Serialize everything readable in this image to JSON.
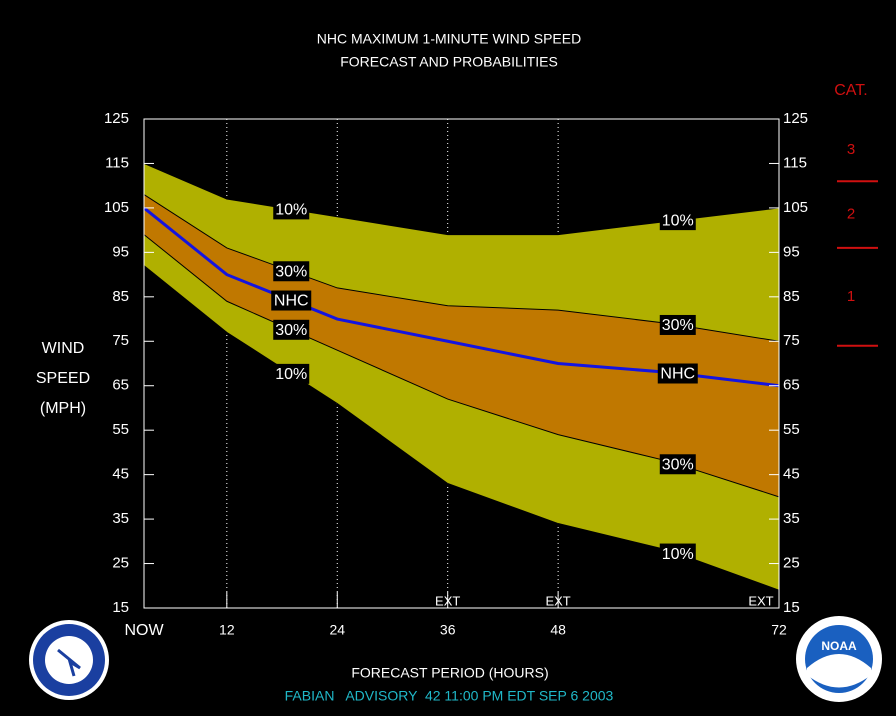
{
  "chart_data": {
    "type": "probability-bands",
    "title": "NHC MAXIMUM 1-MINUTE WIND SPEED",
    "subtitle": "FORECAST AND PROBABILITIES",
    "y_label": [
      "WIND",
      "SPEED",
      "(MPH)"
    ],
    "x_label": "FORECAST PERIOD (HOURS)",
    "footer": "FABIAN   ADVISORY  42 11:00 PM EDT SEP 6 2003",
    "x": [
      3,
      12,
      24,
      36,
      48,
      60,
      72
    ],
    "series": [
      {
        "name": "10%",
        "color": "#b0b000",
        "values": [
          115,
          107,
          103,
          99,
          99,
          102,
          105
        ]
      },
      {
        "name": "30%",
        "color": "#c07800",
        "values": [
          108,
          96,
          87,
          83,
          82,
          79,
          75
        ]
      },
      {
        "name": "NHC",
        "color": "#1414e0",
        "values": [
          105,
          90,
          80,
          75,
          70,
          68,
          65
        ]
      },
      {
        "name": "30%",
        "color": "#c07800",
        "values": [
          99,
          84,
          73,
          62,
          54,
          48,
          40
        ]
      },
      {
        "name": "10%",
        "color": "#b0b000",
        "values": [
          92,
          77,
          61,
          43,
          34,
          28,
          19
        ]
      }
    ],
    "xlim": [
      3,
      72
    ],
    "xticks": [
      {
        "value": 3,
        "label": "NOW"
      },
      12,
      24,
      36,
      48,
      72
    ],
    "ylim": [
      15,
      125
    ],
    "yticks": [
      15,
      25,
      35,
      45,
      55,
      65,
      75,
      85,
      95,
      105,
      115,
      125
    ],
    "y2lim": [
      15,
      125
    ],
    "y2ticks": [
      15,
      25,
      35,
      45,
      55,
      65,
      75,
      85,
      95,
      105,
      115,
      125
    ],
    "ext_x": [
      36,
      48,
      72
    ],
    "ext_label": "EXT",
    "category_title": "CAT.",
    "category_thresholds": [
      74,
      96,
      111
    ],
    "category_labels": [
      "1",
      "2",
      "3"
    ],
    "category_color": "#d01010",
    "logo_text": "NOAA"
  }
}
